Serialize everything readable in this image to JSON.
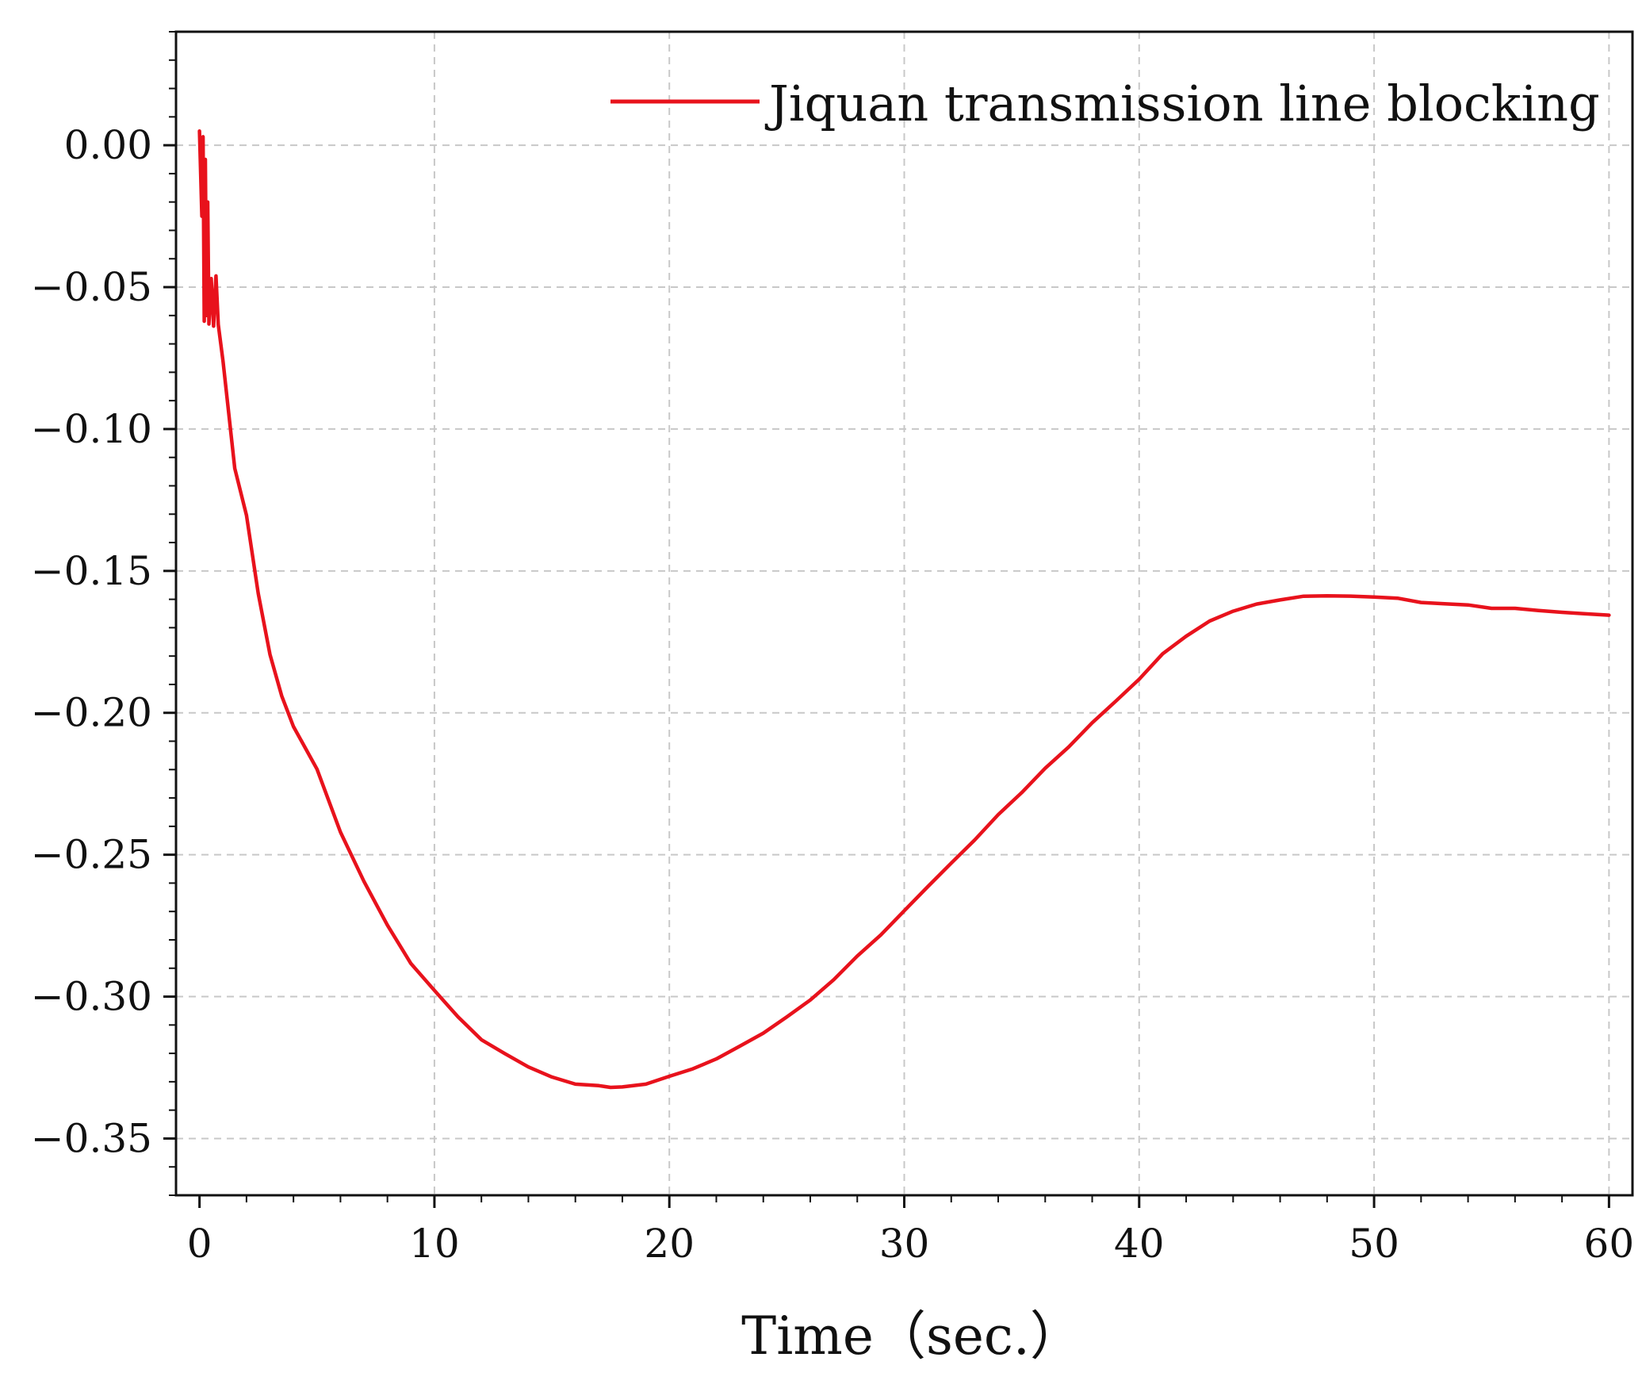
{
  "chart_data": {
    "type": "line",
    "title": "",
    "xlabel": "Time（sec.）",
    "ylabel": "",
    "xlim": [
      -1,
      61
    ],
    "ylim": [
      -0.37,
      0.04
    ],
    "xticks": [
      0,
      10,
      20,
      30,
      40,
      50,
      60
    ],
    "xtick_labels": [
      "0",
      "10",
      "20",
      "30",
      "40",
      "50",
      "60"
    ],
    "yticks": [
      0.0,
      -0.05,
      -0.1,
      -0.15,
      -0.2,
      -0.25,
      -0.3,
      -0.35
    ],
    "ytick_labels": [
      "0.00",
      "−0.05",
      "−0.10",
      "−0.15",
      "−0.20",
      "−0.25",
      "−0.30",
      "−0.35"
    ],
    "grid": true,
    "legend": {
      "position": "top-right",
      "entries": [
        "Jiquan transmission line blocking"
      ]
    },
    "series": [
      {
        "name": "Jiquan transmission line blocking",
        "color": "#e8121c",
        "x": [
          0,
          0.1,
          0.15,
          0.2,
          0.25,
          0.3,
          0.35,
          0.4,
          0.5,
          0.6,
          0.7,
          0.8,
          1.0,
          1.5,
          2,
          2.5,
          3,
          3.5,
          4,
          5,
          6,
          7,
          8,
          9,
          10,
          11,
          12,
          13,
          14,
          15,
          16,
          17,
          17.5,
          18,
          19,
          20,
          21,
          22,
          23,
          24,
          25,
          26,
          27,
          28,
          29,
          30,
          31,
          32,
          33,
          34,
          35,
          36,
          37,
          38,
          39,
          40,
          41,
          42,
          43,
          44,
          45,
          46,
          47,
          48,
          49,
          50,
          51,
          52,
          53,
          54,
          55,
          56,
          57,
          58,
          59,
          60
        ],
        "y": [
          0.005,
          -0.025,
          0.003,
          -0.062,
          -0.005,
          -0.06,
          -0.02,
          -0.063,
          -0.047,
          -0.063,
          -0.045,
          -0.062,
          -0.075,
          -0.113,
          -0.13,
          -0.158,
          -0.18,
          -0.195,
          -0.206,
          -0.221,
          -0.243,
          -0.26,
          -0.275,
          -0.288,
          -0.297,
          -0.306,
          -0.314,
          -0.319,
          -0.324,
          -0.328,
          -0.331,
          -0.332,
          -0.333,
          -0.333,
          -0.332,
          -0.329,
          -0.326,
          -0.322,
          -0.317,
          -0.312,
          -0.306,
          -0.3,
          -0.293,
          -0.285,
          -0.278,
          -0.27,
          -0.262,
          -0.254,
          -0.246,
          -0.237,
          -0.229,
          -0.22,
          -0.212,
          -0.203,
          -0.195,
          -0.187,
          -0.178,
          -0.172,
          -0.167,
          -0.164,
          -0.162,
          -0.161,
          -0.16,
          -0.16,
          -0.16,
          -0.16,
          -0.16,
          -0.161,
          -0.161,
          -0.161,
          -0.162,
          -0.162,
          -0.163,
          -0.164,
          -0.165,
          -0.166
        ]
      }
    ]
  }
}
